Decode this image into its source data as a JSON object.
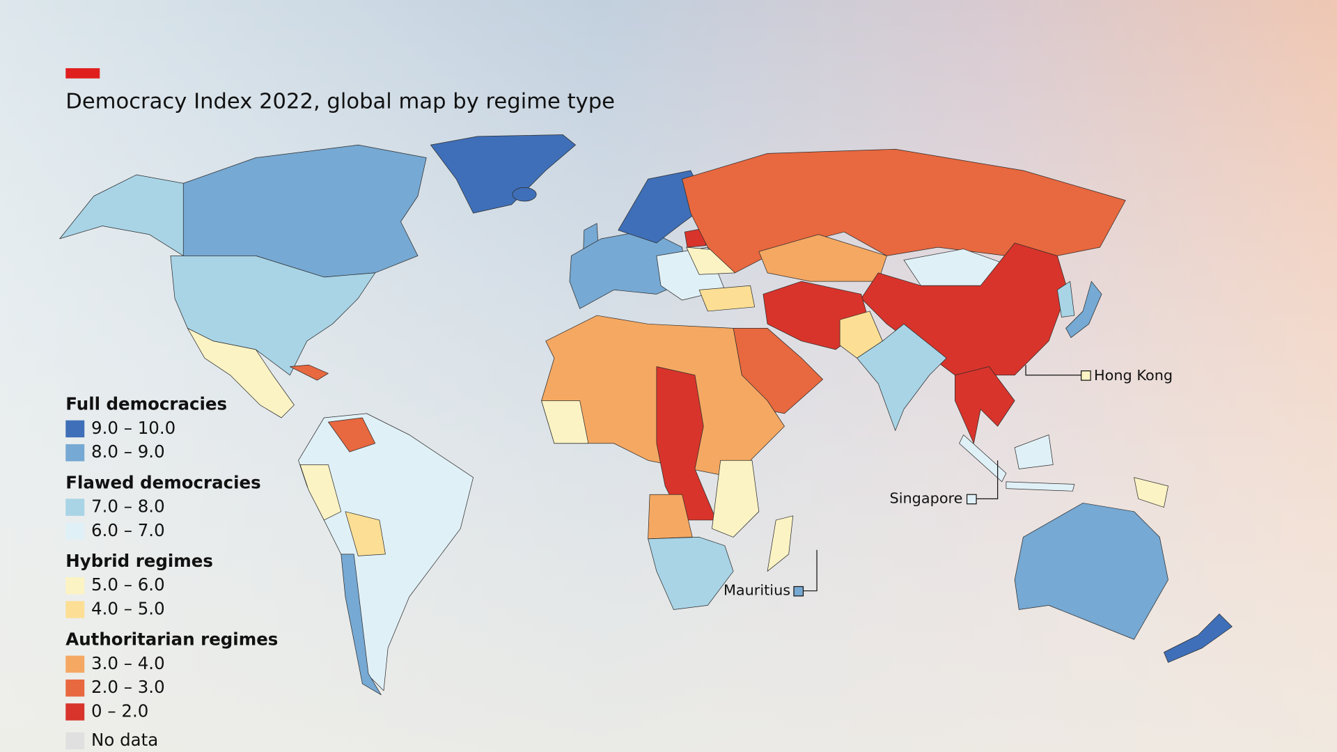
{
  "title": "Democracy Index 2022, global map by regime type",
  "legend": {
    "groups": [
      {
        "title": "Full democracies",
        "items": [
          {
            "label": "9.0 – 10.0",
            "color": "#3f6fb8"
          },
          {
            "label": "8.0 – 9.0",
            "color": "#76a9d3"
          }
        ]
      },
      {
        "title": "Flawed democracies",
        "items": [
          {
            "label": "7.0 – 8.0",
            "color": "#a8d4e6"
          },
          {
            "label": "6.0 – 7.0",
            "color": "#e0f0f7"
          }
        ]
      },
      {
        "title": "Hybrid regimes",
        "items": [
          {
            "label": "5.0 – 6.0",
            "color": "#fbf3c4"
          },
          {
            "label": "4.0 – 5.0",
            "color": "#fcdf95"
          }
        ]
      },
      {
        "title": "Authoritarian regimes",
        "items": [
          {
            "label": "3.0 – 4.0",
            "color": "#f5a862"
          },
          {
            "label": "2.0 – 3.0",
            "color": "#e8683f"
          },
          {
            "label": "0 – 2.0",
            "color": "#d8342b"
          }
        ]
      }
    ],
    "no_data": {
      "label": "No data",
      "color": "#e0e0e0"
    }
  },
  "callouts": [
    {
      "label": "Hong Kong"
    },
    {
      "label": "Singapore"
    },
    {
      "label": "Mauritius"
    }
  ]
}
